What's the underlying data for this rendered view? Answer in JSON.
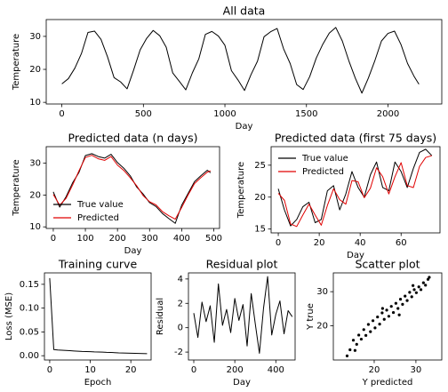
{
  "chart_data": [
    {
      "type": "line",
      "title": "All data",
      "xlabel": "Day",
      "ylabel": "Temperature",
      "color": "#000000",
      "x": [
        0,
        40,
        80,
        120,
        160,
        200,
        240,
        280,
        320,
        360,
        400,
        440,
        480,
        520,
        560,
        600,
        640,
        680,
        720,
        760,
        800,
        840,
        880,
        920,
        960,
        1000,
        1040,
        1080,
        1120,
        1160,
        1200,
        1240,
        1280,
        1320,
        1360,
        1400,
        1440,
        1480,
        1520,
        1560,
        1600,
        1640,
        1680,
        1720,
        1760,
        1800,
        1840,
        1880,
        1920,
        1960,
        2000,
        2040,
        2080,
        2120,
        2160,
        2190
      ],
      "values": [
        15.6,
        17.2,
        20.4,
        24.8,
        31.2,
        31.6,
        29.1,
        23.8,
        17.5,
        16.2,
        14.1,
        19.8,
        25.9,
        29.4,
        31.8,
        30.2,
        26.7,
        18.9,
        16.4,
        13.8,
        18.9,
        23.2,
        30.6,
        31.5,
        30.1,
        27.3,
        19.6,
        16.8,
        13.6,
        18.4,
        22.5,
        29.9,
        31.4,
        32.4,
        26.2,
        21.8,
        15.4,
        13.9,
        17.8,
        23.4,
        27.6,
        31.0,
        32.7,
        28.6,
        22.6,
        17.3,
        12.8,
        17.4,
        22.7,
        28.6,
        30.9,
        31.6,
        27.5,
        21.8,
        17.9,
        15.5
      ],
      "xlim": [
        -96,
        2330
      ],
      "ylim": [
        9.5,
        35.1
      ],
      "xticks": [
        0,
        500,
        1000,
        1500,
        2000
      ],
      "yticks": [
        10,
        20,
        30
      ]
    },
    {
      "type": "line",
      "title": "Predicted data (n days)",
      "xlabel": "Day",
      "ylabel": "Temperature",
      "legend": "lower left",
      "x": [
        0,
        20,
        40,
        60,
        80,
        100,
        120,
        140,
        160,
        180,
        200,
        220,
        240,
        260,
        280,
        300,
        320,
        340,
        360,
        380,
        400,
        420,
        440,
        460,
        480,
        490
      ],
      "series": [
        {
          "name": "True value",
          "color": "#000000",
          "values": [
            21.0,
            16.2,
            19.5,
            23.8,
            27.1,
            32.4,
            33.0,
            32.1,
            31.6,
            32.8,
            30.2,
            28.4,
            26.0,
            22.5,
            20.3,
            17.6,
            16.4,
            14.2,
            12.6,
            11.1,
            16.8,
            20.5,
            24.2,
            26.1,
            27.8,
            27.0
          ]
        },
        {
          "name": "Predicted",
          "color": "#e00000",
          "values": [
            20.2,
            16.8,
            19.0,
            23.1,
            27.6,
            31.8,
            32.5,
            31.4,
            30.9,
            32.1,
            29.4,
            27.7,
            25.4,
            22.9,
            19.8,
            17.9,
            16.9,
            14.8,
            13.5,
            12.4,
            16.1,
            20.0,
            23.6,
            25.5,
            27.2,
            27.6
          ]
        }
      ],
      "xlim": [
        -22,
        518
      ],
      "ylim": [
        9.5,
        35.2
      ],
      "xticks": [
        0,
        100,
        200,
        300,
        400,
        500
      ],
      "yticks": [
        10,
        20,
        30
      ]
    },
    {
      "type": "line",
      "title": "Predicted data (first 75 days)",
      "xlabel": "Day",
      "ylabel": "Temperature",
      "legend": "upper left",
      "x": [
        0,
        3,
        6,
        9,
        12,
        15,
        18,
        21,
        24,
        27,
        30,
        33,
        36,
        39,
        42,
        45,
        48,
        51,
        54,
        57,
        60,
        63,
        66,
        69,
        72,
        75
      ],
      "series": [
        {
          "name": "True value",
          "color": "#000000",
          "values": [
            21.3,
            18.0,
            15.5,
            16.5,
            18.5,
            19.2,
            16.0,
            16.5,
            21.0,
            21.8,
            18.0,
            20.5,
            24.0,
            21.5,
            20.0,
            23.5,
            25.5,
            21.5,
            21.0,
            25.5,
            24.0,
            21.5,
            24.5,
            27.0,
            27.5,
            26.5
          ]
        },
        {
          "name": "Predicted",
          "color": "#e00000",
          "values": [
            20.6,
            19.5,
            15.8,
            15.4,
            17.2,
            18.9,
            17.2,
            15.6,
            18.7,
            21.3,
            19.6,
            18.9,
            22.6,
            22.4,
            19.9,
            21.4,
            24.6,
            23.2,
            20.5,
            23.2,
            25.4,
            21.8,
            21.5,
            24.8,
            26.2,
            26.5
          ]
        }
      ],
      "xlim": [
        -3.5,
        79
      ],
      "ylim": [
        14.4,
        27.9
      ],
      "xticks": [
        0,
        20,
        40,
        60
      ],
      "yticks": [
        15,
        20,
        25
      ]
    },
    {
      "type": "line",
      "title": "Training curve",
      "xlabel": "Epoch",
      "ylabel": "Loss (MSE)",
      "color": "#000000",
      "x": [
        0,
        1,
        2,
        3,
        4,
        5,
        6,
        7,
        8,
        9,
        10,
        11,
        12,
        13,
        14,
        15,
        16,
        17,
        18,
        19,
        20,
        21,
        22,
        23,
        24
      ],
      "values": [
        0.163,
        0.013,
        0.012,
        0.0115,
        0.011,
        0.0105,
        0.01,
        0.0095,
        0.009,
        0.0088,
        0.0085,
        0.008,
        0.0078,
        0.0075,
        0.007,
        0.0068,
        0.0065,
        0.006,
        0.0058,
        0.0055,
        0.0052,
        0.005,
        0.0048,
        0.0045,
        0.0043
      ],
      "xlim": [
        -1.3,
        25
      ],
      "ylim": [
        -0.009,
        0.174
      ],
      "xticks": [
        0,
        10,
        20
      ],
      "yticks": [
        {
          "value": 0,
          "label": "0.00"
        },
        {
          "value": 0.05,
          "label": "0.05"
        },
        {
          "value": 0.1,
          "label": "0.10"
        },
        {
          "value": 0.15,
          "label": "0.15"
        }
      ]
    },
    {
      "type": "line",
      "title": "Residual plot",
      "xlabel": "Day",
      "ylabel": "Residual",
      "color": "#000000",
      "x": [
        0,
        20,
        40,
        60,
        80,
        100,
        120,
        140,
        160,
        180,
        200,
        220,
        240,
        260,
        280,
        300,
        320,
        340,
        360,
        380,
        400,
        420,
        440,
        460,
        480
      ],
      "values": [
        1.2,
        -0.8,
        2.1,
        0.5,
        1.8,
        -1.2,
        3.6,
        0.2,
        1.5,
        -0.4,
        2.4,
        0.6,
        1.9,
        -1.5,
        2.8,
        0.3,
        -2.1,
        1.6,
        4.2,
        -0.6,
        1.1,
        2.2,
        -0.5,
        1.4,
        0.9
      ],
      "xlim": [
        -26,
        494
      ],
      "ylim": [
        -2.65,
        4.5
      ],
      "xticks": [
        0,
        200,
        400
      ],
      "yticks": [
        -2,
        0,
        2,
        4
      ]
    },
    {
      "type": "scatter",
      "title": "Scatter plot",
      "xlabel": "Y predicted",
      "ylabel": "Y true",
      "color": "#000000",
      "x": [
        13.5,
        14.2,
        15.0,
        15.8,
        16.3,
        16.9,
        17.5,
        18.0,
        18.6,
        19.1,
        19.7,
        20.2,
        20.8,
        21.3,
        21.9,
        22.4,
        23.0,
        23.5,
        24.1,
        24.6,
        25.2,
        25.7,
        26.3,
        26.8,
        27.4,
        27.9,
        28.5,
        29.0,
        29.6,
        30.1,
        30.7,
        31.2,
        31.8,
        32.3,
        32.9,
        33.2,
        15.4,
        22.0,
        26.0,
        29.3
      ],
      "values": [
        11.2,
        13.0,
        15.8,
        14.6,
        17.3,
        16.1,
        18.9,
        17.2,
        20.4,
        18.3,
        21.5,
        19.4,
        22.6,
        20.5,
        23.8,
        21.9,
        24.6,
        22.8,
        25.7,
        23.9,
        26.6,
        25.1,
        27.8,
        26.3,
        28.7,
        27.4,
        29.8,
        28.5,
        30.6,
        29.7,
        31.4,
        30.6,
        32.6,
        31.9,
        33.6,
        34.2,
        12.8,
        25.1,
        23.2,
        31.8
      ],
      "xlim": [
        10.2,
        36.2
      ],
      "ylim": [
        10,
        35.5
      ],
      "xticks": [
        20,
        30
      ],
      "yticks": [
        20,
        30
      ]
    }
  ]
}
